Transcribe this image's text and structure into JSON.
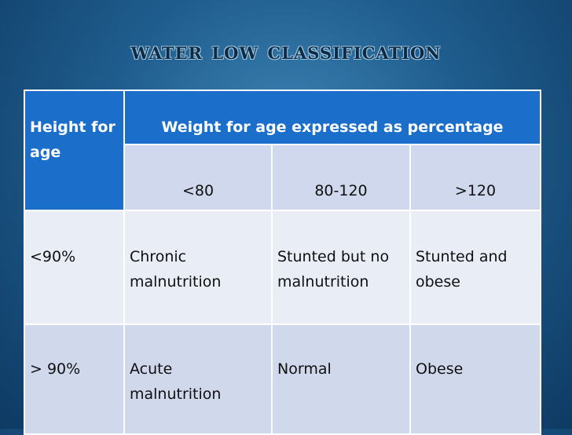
{
  "title": "Water low classification",
  "table": {
    "row_header_label": "Height for age",
    "group_header": "Weight for age expressed as percentage",
    "columns": [
      "<80",
      "80-120",
      ">120"
    ],
    "rows": [
      {
        "label": "<90%",
        "cells": [
          "Chronic malnutrition",
          "Stunted but no malnutrition",
          "Stunted and obese"
        ]
      },
      {
        "label": "> 90%",
        "cells": [
          "Acute malnutrition",
          "Normal",
          "Obese"
        ]
      }
    ]
  },
  "colors": {
    "header_blue": "#1b6fcb",
    "subheader": "#cfd8ec",
    "row_light": "#e9edf6",
    "row_dark": "#d0d8ec"
  }
}
